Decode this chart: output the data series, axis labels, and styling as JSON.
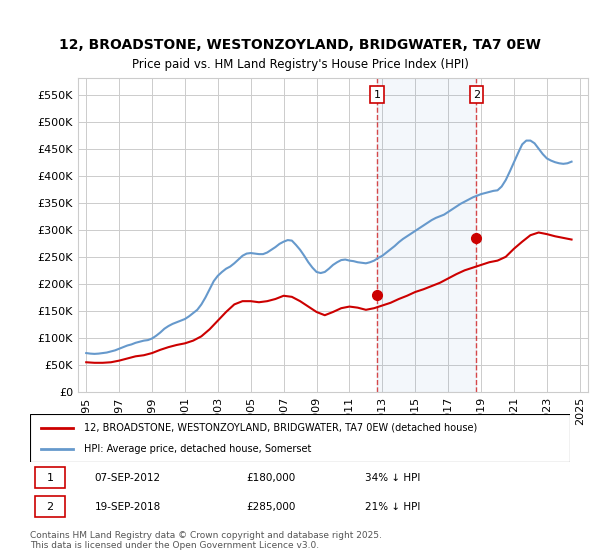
{
  "title": "12, BROADSTONE, WESTONZOYLAND, BRIDGWATER, TA7 0EW",
  "subtitle": "Price paid vs. HM Land Registry's House Price Index (HPI)",
  "ylabel_ticks": [
    "£0",
    "£50K",
    "£100K",
    "£150K",
    "£200K",
    "£250K",
    "£300K",
    "£350K",
    "£400K",
    "£450K",
    "£500K",
    "£550K"
  ],
  "ytick_values": [
    0,
    50000,
    100000,
    150000,
    200000,
    250000,
    300000,
    350000,
    400000,
    450000,
    500000,
    550000
  ],
  "ylim": [
    0,
    580000
  ],
  "line1_color": "#cc0000",
  "line2_color": "#6699cc",
  "marker1_color": "#cc0000",
  "purchase1_date": "07-SEP-2012",
  "purchase1_price": 180000,
  "purchase1_label": "34% ↓ HPI",
  "purchase2_date": "19-SEP-2018",
  "purchase2_price": 285000,
  "purchase2_label": "21% ↓ HPI",
  "legend1": "12, BROADSTONE, WESTONZOYLAND, BRIDGWATER, TA7 0EW (detached house)",
  "legend2": "HPI: Average price, detached house, Somerset",
  "footnote": "Contains HM Land Registry data © Crown copyright and database right 2025.\nThis data is licensed under the Open Government Licence v3.0.",
  "background_color": "#ffffff",
  "grid_color": "#cccccc",
  "vline1_x": 2012.69,
  "vline2_x": 2018.72,
  "hpi_years": [
    1995.0,
    1995.25,
    1995.5,
    1995.75,
    1996.0,
    1996.25,
    1996.5,
    1996.75,
    1997.0,
    1997.25,
    1997.5,
    1997.75,
    1998.0,
    1998.25,
    1998.5,
    1998.75,
    1999.0,
    1999.25,
    1999.5,
    1999.75,
    2000.0,
    2000.25,
    2000.5,
    2000.75,
    2001.0,
    2001.25,
    2001.5,
    2001.75,
    2002.0,
    2002.25,
    2002.5,
    2002.75,
    2003.0,
    2003.25,
    2003.5,
    2003.75,
    2004.0,
    2004.25,
    2004.5,
    2004.75,
    2005.0,
    2005.25,
    2005.5,
    2005.75,
    2006.0,
    2006.25,
    2006.5,
    2006.75,
    2007.0,
    2007.25,
    2007.5,
    2007.75,
    2008.0,
    2008.25,
    2008.5,
    2008.75,
    2009.0,
    2009.25,
    2009.5,
    2009.75,
    2010.0,
    2010.25,
    2010.5,
    2010.75,
    2011.0,
    2011.25,
    2011.5,
    2011.75,
    2012.0,
    2012.25,
    2012.5,
    2012.75,
    2013.0,
    2013.25,
    2013.5,
    2013.75,
    2014.0,
    2014.25,
    2014.5,
    2014.75,
    2015.0,
    2015.25,
    2015.5,
    2015.75,
    2016.0,
    2016.25,
    2016.5,
    2016.75,
    2017.0,
    2017.25,
    2017.5,
    2017.75,
    2018.0,
    2018.25,
    2018.5,
    2018.75,
    2019.0,
    2019.25,
    2019.5,
    2019.75,
    2020.0,
    2020.25,
    2020.5,
    2020.75,
    2021.0,
    2021.25,
    2021.5,
    2021.75,
    2022.0,
    2022.25,
    2022.5,
    2022.75,
    2023.0,
    2023.25,
    2023.5,
    2023.75,
    2024.0,
    2024.25,
    2024.5
  ],
  "hpi_values": [
    72000,
    71000,
    70500,
    71000,
    72000,
    73000,
    75000,
    77000,
    80000,
    83000,
    86000,
    88000,
    91000,
    93000,
    95000,
    96000,
    99000,
    104000,
    110000,
    117000,
    122000,
    126000,
    129000,
    132000,
    135000,
    140000,
    146000,
    152000,
    162000,
    175000,
    190000,
    205000,
    215000,
    222000,
    228000,
    232000,
    238000,
    245000,
    252000,
    256000,
    257000,
    256000,
    255000,
    255000,
    258000,
    263000,
    268000,
    274000,
    278000,
    281000,
    280000,
    272000,
    263000,
    252000,
    240000,
    230000,
    222000,
    220000,
    222000,
    228000,
    235000,
    240000,
    244000,
    245000,
    243000,
    242000,
    240000,
    239000,
    238000,
    240000,
    243000,
    248000,
    252000,
    258000,
    264000,
    270000,
    277000,
    283000,
    288000,
    293000,
    298000,
    303000,
    308000,
    313000,
    318000,
    322000,
    325000,
    328000,
    333000,
    338000,
    343000,
    348000,
    352000,
    356000,
    360000,
    363000,
    366000,
    368000,
    370000,
    372000,
    373000,
    380000,
    392000,
    408000,
    425000,
    442000,
    458000,
    465000,
    465000,
    460000,
    450000,
    440000,
    432000,
    428000,
    425000,
    423000,
    422000,
    423000,
    426000
  ],
  "price_years": [
    1995.0,
    1995.5,
    1996.0,
    1996.5,
    1997.0,
    1997.5,
    1998.0,
    1998.5,
    1999.0,
    1999.5,
    2000.0,
    2000.5,
    2001.0,
    2001.5,
    2002.0,
    2002.5,
    2003.0,
    2003.5,
    2004.0,
    2004.5,
    2005.0,
    2005.5,
    2006.0,
    2006.5,
    2007.0,
    2007.5,
    2008.0,
    2008.5,
    2009.0,
    2009.5,
    2010.0,
    2010.5,
    2011.0,
    2011.5,
    2012.0,
    2012.5,
    2013.0,
    2013.5,
    2014.0,
    2014.5,
    2015.0,
    2015.5,
    2016.0,
    2016.5,
    2017.0,
    2017.5,
    2018.0,
    2018.5,
    2019.0,
    2019.5,
    2020.0,
    2020.5,
    2021.0,
    2021.5,
    2022.0,
    2022.5,
    2023.0,
    2023.5,
    2024.0,
    2024.5
  ],
  "price_values": [
    55000,
    54000,
    54000,
    55000,
    58000,
    62000,
    66000,
    68000,
    72000,
    78000,
    83000,
    87000,
    90000,
    95000,
    103000,
    116000,
    132000,
    148000,
    162000,
    168000,
    168000,
    166000,
    168000,
    172000,
    178000,
    176000,
    168000,
    158000,
    148000,
    142000,
    148000,
    155000,
    158000,
    156000,
    152000,
    155000,
    160000,
    165000,
    172000,
    178000,
    185000,
    190000,
    196000,
    202000,
    210000,
    218000,
    225000,
    230000,
    235000,
    240000,
    243000,
    250000,
    265000,
    278000,
    290000,
    295000,
    292000,
    288000,
    285000,
    282000
  ],
  "xtick_years": [
    1995,
    1997,
    1999,
    2001,
    2003,
    2005,
    2007,
    2009,
    2011,
    2013,
    2015,
    2017,
    2019,
    2021,
    2023,
    2025
  ],
  "xlim": [
    1994.5,
    2025.5
  ]
}
